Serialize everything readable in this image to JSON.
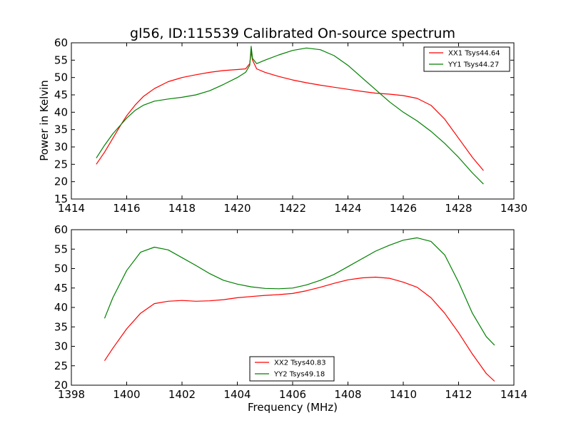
{
  "chart_data": [
    {
      "type": "line",
      "title": "gl56, ID:115539 Calibrated On-source spectrum",
      "xlabel": "",
      "ylabel": "Power in Kelvin",
      "xlim": [
        1414,
        1430
      ],
      "ylim": [
        15,
        60
      ],
      "xticks": [
        "1414",
        "1416",
        "1418",
        "1420",
        "1422",
        "1424",
        "1426",
        "1428",
        "1430"
      ],
      "yticks": [
        "15",
        "20",
        "25",
        "30",
        "35",
        "40",
        "45",
        "50",
        "55",
        "60"
      ],
      "legend_position": "top-right",
      "grid": false,
      "series": [
        {
          "name": "XX1 Tsys44.64",
          "color": "#ff0000",
          "x": [
            1414.9,
            1415.2,
            1415.5,
            1415.8,
            1416.0,
            1416.3,
            1416.6,
            1417.0,
            1417.5,
            1418.0,
            1418.5,
            1419.0,
            1419.5,
            1420.0,
            1420.3,
            1420.45,
            1420.5,
            1420.55,
            1420.7,
            1421.0,
            1421.5,
            1422.0,
            1422.5,
            1423.0,
            1423.5,
            1424.0,
            1424.5,
            1425.0,
            1425.5,
            1426.0,
            1426.5,
            1427.0,
            1427.5,
            1428.0,
            1428.5,
            1428.9
          ],
          "y": [
            25.0,
            28.5,
            32.5,
            36.5,
            39.0,
            42.0,
            44.5,
            46.8,
            48.8,
            50.0,
            50.8,
            51.5,
            52.0,
            52.3,
            52.5,
            54.0,
            57.5,
            55.0,
            52.5,
            51.5,
            50.3,
            49.3,
            48.5,
            47.8,
            47.2,
            46.6,
            46.0,
            45.5,
            45.2,
            44.8,
            44.0,
            42.0,
            38.0,
            32.5,
            27.0,
            23.2
          ]
        },
        {
          "name": "YY1 Tsys44.27",
          "color": "#008000",
          "x": [
            1414.9,
            1415.2,
            1415.5,
            1415.8,
            1416.0,
            1416.3,
            1416.6,
            1417.0,
            1417.5,
            1418.0,
            1418.5,
            1419.0,
            1419.5,
            1420.0,
            1420.3,
            1420.45,
            1420.5,
            1420.55,
            1420.7,
            1421.0,
            1421.5,
            1422.0,
            1422.5,
            1423.0,
            1423.5,
            1424.0,
            1424.5,
            1425.0,
            1425.5,
            1426.0,
            1426.5,
            1427.0,
            1427.5,
            1428.0,
            1428.5,
            1428.9
          ],
          "y": [
            26.8,
            30.5,
            33.8,
            36.5,
            38.3,
            40.5,
            42.0,
            43.2,
            43.8,
            44.3,
            45.0,
            46.2,
            48.0,
            50.0,
            51.5,
            53.5,
            59.0,
            55.5,
            54.0,
            55.0,
            56.5,
            57.8,
            58.5,
            58.0,
            56.3,
            53.5,
            50.0,
            46.5,
            43.0,
            40.0,
            37.5,
            34.5,
            31.0,
            27.0,
            22.5,
            19.3
          ]
        }
      ]
    },
    {
      "type": "line",
      "title": "",
      "xlabel": "Frequency (MHz)",
      "ylabel": "",
      "xlim": [
        1398,
        1414
      ],
      "ylim": [
        20,
        60
      ],
      "xticks": [
        "1398",
        "1400",
        "1402",
        "1404",
        "1406",
        "1408",
        "1410",
        "1412",
        "1414"
      ],
      "yticks": [
        "20",
        "25",
        "30",
        "35",
        "40",
        "45",
        "50",
        "55",
        "60"
      ],
      "legend_position": "lower-center",
      "grid": false,
      "series": [
        {
          "name": "XX2 Tsys40.83",
          "color": "#ff0000",
          "x": [
            1399.2,
            1399.5,
            1400.0,
            1400.5,
            1401.0,
            1401.5,
            1402.0,
            1402.5,
            1403.0,
            1403.5,
            1404.0,
            1404.5,
            1405.0,
            1405.5,
            1406.0,
            1406.5,
            1407.0,
            1407.5,
            1408.0,
            1408.5,
            1409.0,
            1409.5,
            1410.0,
            1410.5,
            1411.0,
            1411.5,
            1412.0,
            1412.5,
            1413.0,
            1413.3
          ],
          "y": [
            26.3,
            29.5,
            34.5,
            38.5,
            41.0,
            41.6,
            41.8,
            41.6,
            41.7,
            42.0,
            42.5,
            42.8,
            43.1,
            43.3,
            43.6,
            44.3,
            45.2,
            46.2,
            47.1,
            47.6,
            47.8,
            47.5,
            46.5,
            45.2,
            42.5,
            38.5,
            33.5,
            28.0,
            23.0,
            21.0
          ]
        },
        {
          "name": "YY2 Tsys49.18",
          "color": "#008000",
          "x": [
            1399.2,
            1399.5,
            1400.0,
            1400.5,
            1401.0,
            1401.5,
            1402.0,
            1402.5,
            1403.0,
            1403.5,
            1404.0,
            1404.5,
            1405.0,
            1405.5,
            1406.0,
            1406.5,
            1407.0,
            1407.5,
            1408.0,
            1408.5,
            1409.0,
            1409.5,
            1410.0,
            1410.5,
            1411.0,
            1411.5,
            1412.0,
            1412.5,
            1413.0,
            1413.3
          ],
          "y": [
            37.2,
            42.5,
            49.5,
            54.2,
            55.5,
            54.8,
            52.8,
            50.8,
            48.7,
            47.0,
            46.0,
            45.3,
            44.9,
            44.8,
            45.0,
            45.8,
            47.0,
            48.5,
            50.5,
            52.5,
            54.5,
            56.0,
            57.3,
            57.9,
            57.0,
            53.5,
            46.5,
            38.5,
            32.5,
            30.3
          ]
        }
      ]
    }
  ]
}
